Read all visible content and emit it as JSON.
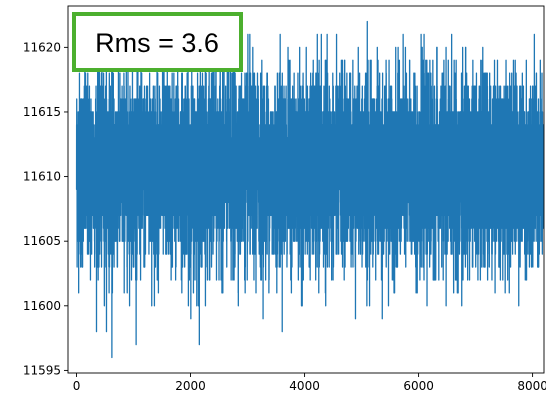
{
  "chart_data": {
    "type": "line",
    "title": "",
    "xlabel": "",
    "ylabel": "",
    "xlim": [
      -150,
      8200
    ],
    "ylim": [
      11594.8,
      11623.2
    ],
    "xticks": [
      0,
      2000,
      4000,
      6000,
      8000
    ],
    "yticks": [
      11595,
      11600,
      11605,
      11610,
      11615,
      11620
    ],
    "grid": false,
    "series": [
      {
        "color": "#1f77b4",
        "n_points": 8192,
        "x_start": 0,
        "x_step": 1,
        "mean": 11610.5,
        "std": 3.6,
        "min_value": 11596,
        "max_value": 11622,
        "min_at_x": 620,
        "max_at_x": 5100
      }
    ],
    "annotations": [
      {
        "text": "Rms = 3.6",
        "box_color": "#4caf2e"
      }
    ]
  }
}
